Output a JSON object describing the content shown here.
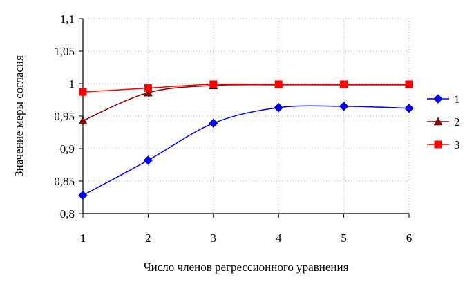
{
  "chart_data": {
    "type": "line",
    "x": [
      1,
      2,
      3,
      4,
      5,
      6
    ],
    "xlabel": "Число членов регрессионного уравнения",
    "ylabel": "Значение меры согласия",
    "ylim": [
      0.8,
      1.1
    ],
    "yticks": [
      "0,8",
      "0,85",
      "0,9",
      "0,95",
      "1",
      "1,05",
      "1,1"
    ],
    "xticks": [
      "1",
      "2",
      "3",
      "4",
      "5",
      "6"
    ],
    "grid": "horizontal and vertical, dotted",
    "legend_position": "right",
    "series": [
      {
        "name": "1",
        "values": [
          0.828,
          0.882,
          0.939,
          0.963,
          0.965,
          0.962
        ],
        "color": "#0000ee",
        "marker": "diamond"
      },
      {
        "name": "2",
        "values": [
          0.943,
          0.986,
          0.997,
          0.998,
          0.998,
          0.998
        ],
        "color": "#8b0000",
        "marker": "triangle"
      },
      {
        "name": "3",
        "values": [
          0.987,
          0.993,
          0.999,
          0.999,
          0.999,
          0.999
        ],
        "color": "#ff0000",
        "marker": "square"
      }
    ]
  }
}
